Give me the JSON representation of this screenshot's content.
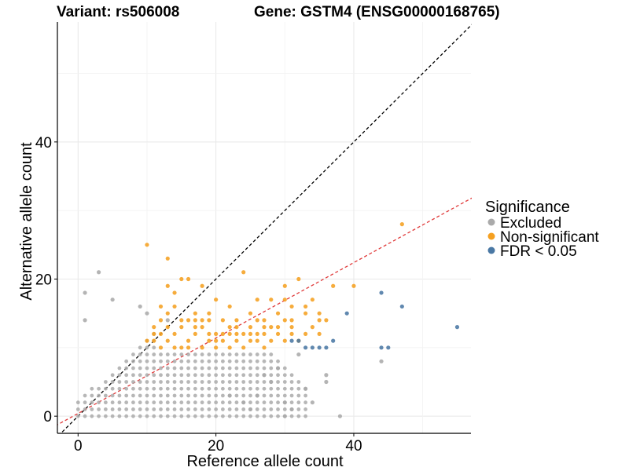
{
  "header": {
    "variant": "Variant: rs506008",
    "gene": "Gene: GSTM4 (ENSG00000168765)"
  },
  "chart_data": {
    "type": "scatter",
    "xlabel": "Reference allele count",
    "ylabel": "Alternative allele count",
    "xlim": [
      -3,
      57
    ],
    "ylim": [
      -2.5,
      57.5
    ],
    "x_ticks": [
      0,
      20,
      40
    ],
    "y_ticks": [
      0,
      20,
      40
    ],
    "grid": true,
    "legend": {
      "title": "Significance",
      "placement": "right",
      "entries": [
        {
          "label": "Excluded",
          "color": "#AAAAAA"
        },
        {
          "label": "Non-significant",
          "color": "#F5A021"
        },
        {
          "label": "FDR < 0.05",
          "color": "#4A78A4"
        }
      ]
    },
    "reference_lines": [
      {
        "type": "identity",
        "slope": 1,
        "intercept": 0,
        "color": "#000000",
        "style": "dashed"
      },
      {
        "type": "fit",
        "slope": 0.55,
        "intercept": 0.4,
        "color": "#E03A3A",
        "style": "dashed"
      }
    ],
    "series": [
      {
        "name": "Excluded",
        "color": "#AAAAAA",
        "points": [
          [
            1,
            18
          ],
          [
            3,
            21
          ],
          [
            5,
            17
          ],
          [
            1,
            14
          ],
          [
            9,
            16
          ],
          [
            10,
            15
          ],
          [
            13,
            14
          ],
          [
            44,
            8
          ],
          [
            36,
            5
          ],
          [
            36,
            6
          ],
          [
            30,
            2
          ],
          [
            31,
            1
          ],
          [
            30,
            0
          ],
          [
            32,
            9
          ],
          [
            26,
            3
          ],
          [
            24,
            2
          ],
          [
            38,
            0
          ],
          [
            27,
            6
          ],
          [
            28,
            5
          ],
          [
            29,
            7
          ],
          [
            25,
            1
          ],
          [
            22,
            3
          ],
          [
            33,
            4
          ],
          [
            34,
            2
          ]
        ]
      },
      {
        "name": "Non-significant",
        "color": "#F5A021",
        "points": [
          [
            10,
            25
          ],
          [
            13,
            23
          ],
          [
            47,
            28
          ],
          [
            15,
            20
          ],
          [
            16,
            20
          ],
          [
            13,
            19
          ],
          [
            24,
            21
          ],
          [
            18,
            19
          ],
          [
            32,
            20
          ],
          [
            30,
            19
          ],
          [
            37,
            19
          ],
          [
            40,
            19
          ],
          [
            20,
            17
          ],
          [
            26,
            17
          ],
          [
            28,
            17
          ],
          [
            30,
            17
          ],
          [
            34,
            17
          ],
          [
            14,
            18
          ],
          [
            12,
            16
          ],
          [
            22,
            16
          ],
          [
            31,
            16
          ],
          [
            35,
            14
          ],
          [
            35,
            15
          ],
          [
            36,
            14
          ],
          [
            33,
            15
          ],
          [
            34,
            13
          ],
          [
            17,
            15
          ],
          [
            21,
            14
          ],
          [
            27,
            14
          ],
          [
            25,
            13
          ],
          [
            29,
            12
          ],
          [
            31,
            12
          ],
          [
            23,
            13
          ],
          [
            19,
            12
          ],
          [
            11,
            11
          ],
          [
            12,
            12
          ],
          [
            13,
            11
          ],
          [
            14,
            12
          ],
          [
            15,
            10
          ],
          [
            16,
            11
          ],
          [
            17,
            12
          ],
          [
            18,
            13
          ],
          [
            19,
            11
          ],
          [
            20,
            10
          ],
          [
            21,
            11
          ],
          [
            22,
            12
          ],
          [
            23,
            11
          ],
          [
            24,
            10
          ],
          [
            25,
            11
          ],
          [
            26,
            12
          ],
          [
            27,
            10
          ],
          [
            28,
            11
          ],
          [
            29,
            13
          ],
          [
            30,
            11
          ],
          [
            31,
            13
          ],
          [
            33,
            12
          ],
          [
            32,
            11
          ],
          [
            35,
            12
          ],
          [
            10,
            11
          ],
          [
            11,
            13
          ],
          [
            12,
            14
          ],
          [
            13,
            15
          ],
          [
            14,
            16
          ],
          [
            15,
            13
          ],
          [
            16,
            14
          ],
          [
            17,
            13
          ],
          [
            18,
            14
          ],
          [
            19,
            15
          ],
          [
            20,
            12
          ],
          [
            22,
            13
          ],
          [
            24,
            12
          ],
          [
            26,
            14
          ],
          [
            28,
            13
          ],
          [
            30,
            14
          ],
          [
            12,
            10
          ],
          [
            14,
            10
          ],
          [
            16,
            10
          ],
          [
            18,
            10
          ],
          [
            20,
            11
          ],
          [
            22,
            10
          ],
          [
            25,
            12
          ],
          [
            27,
            12
          ],
          [
            29,
            15
          ],
          [
            31,
            14
          ],
          [
            33,
            16
          ],
          [
            11,
            12
          ],
          [
            13,
            13
          ],
          [
            15,
            14
          ],
          [
            17,
            14
          ],
          [
            19,
            14
          ],
          [
            21,
            12
          ],
          [
            23,
            14
          ],
          [
            25,
            15
          ],
          [
            27,
            13
          ],
          [
            23,
            12
          ],
          [
            26,
            11
          ]
        ]
      },
      {
        "name": "FDR < 0.05",
        "color": "#4A78A4",
        "points": [
          [
            44,
            18
          ],
          [
            47,
            16
          ],
          [
            39,
            15
          ],
          [
            55,
            13
          ],
          [
            32,
            11
          ],
          [
            37,
            11
          ],
          [
            33,
            10
          ],
          [
            34,
            10
          ],
          [
            35,
            10
          ],
          [
            36,
            10
          ],
          [
            44,
            10
          ],
          [
            45,
            10
          ],
          [
            31,
            11
          ]
        ]
      }
    ]
  }
}
